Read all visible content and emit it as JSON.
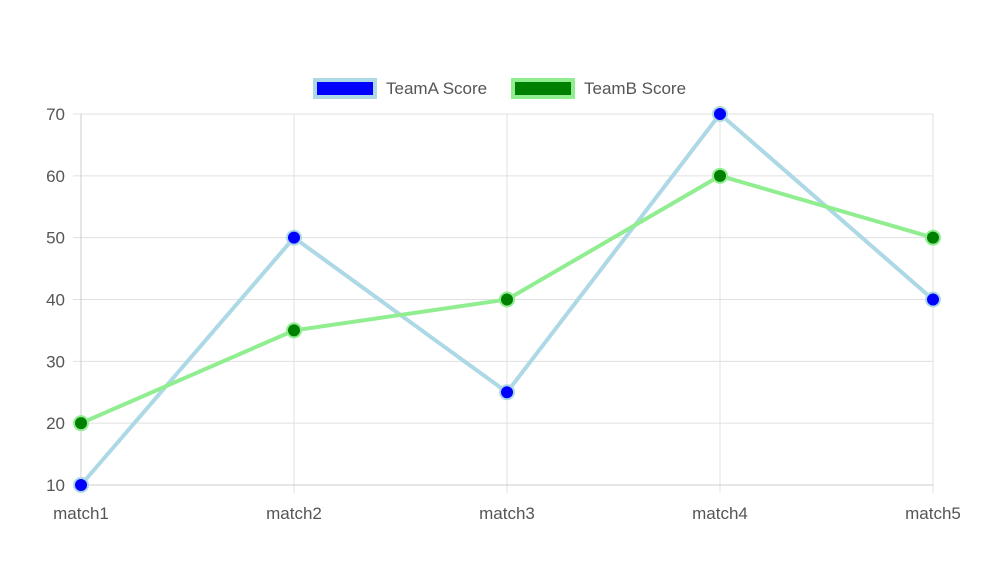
{
  "chart_data": {
    "type": "line",
    "categories": [
      "match1",
      "match2",
      "match3",
      "match4",
      "match5"
    ],
    "ylim": [
      10,
      70
    ],
    "yticks": [
      10,
      20,
      30,
      40,
      50,
      60,
      70
    ],
    "grid": true,
    "legend_position": "top",
    "series": [
      {
        "name": "TeamA Score",
        "values": [
          10,
          50,
          25,
          70,
          40
        ],
        "line_color": "#add8e6",
        "point_color": "#0000ff"
      },
      {
        "name": "TeamB Score",
        "values": [
          20,
          35,
          40,
          60,
          50
        ],
        "line_color": "#90ee90",
        "point_color": "#008000"
      }
    ]
  },
  "colors": {
    "grid": "#e0e0e0",
    "axis": "#cccccc",
    "text": "#555555"
  }
}
